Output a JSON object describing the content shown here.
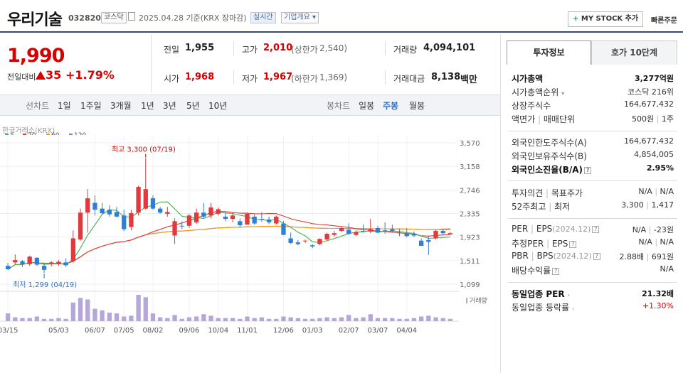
{
  "header": {
    "name": "우리기술",
    "code": "032820",
    "market": "코스닥",
    "date_text": "2025.04.28  기준(KRX 장마감)",
    "realtime": "실시간",
    "overview": "기업개요 ▾",
    "mystock": "MY STOCK 추가",
    "mystock_plus": "+",
    "quick_order": "빠른주문"
  },
  "price": {
    "current": "1,990",
    "change_label": "전일대비",
    "change": "35",
    "change_rate": "+1.79%",
    "up_color": "#d60000"
  },
  "quote": {
    "prev_label": "전일",
    "prev": "1,955",
    "high_label": "고가",
    "high": "2,010",
    "upper_label": "(상한가",
    "upper": "2,540)",
    "volume_label": "거래량",
    "volume": "4,094,101",
    "open_label": "시가",
    "open": "1,968",
    "low_label": "저가",
    "low": "1,967",
    "lower_label": "(하한가",
    "lower": "1,369)",
    "amount_label": "거래대금",
    "amount": "8,138",
    "amount_unit": "백만"
  },
  "period_bar": {
    "line_label": "선차트",
    "line_periods": [
      "1일",
      "1주일",
      "3개월",
      "1년",
      "3년",
      "5년",
      "10년"
    ],
    "candle_label": "봉차트",
    "candle_periods": [
      "일봉",
      "주봉",
      "월봉"
    ],
    "selected": "주봉"
  },
  "chart": {
    "source": "한국거래소(KRX)",
    "ma": [
      {
        "label": "5",
        "color": "#4caf50"
      },
      {
        "label": "20",
        "color": "#e53935"
      },
      {
        "label": "60",
        "color": "#ff9800"
      },
      {
        "label": "120",
        "color": "#9c6fd6"
      }
    ],
    "high_note": "최고 3,300 (07/19)",
    "low_note": "최저 1,299 (04/19)",
    "volume_label": "거래량"
  },
  "chart_data": {
    "type": "candlestick",
    "yticks": [
      3570,
      3158,
      2746,
      2335,
      1923,
      1511,
      1099
    ],
    "ylim": [
      1099,
      3570
    ],
    "xtick_labels": [
      "03/15",
      "05/03",
      "06/07",
      "07/05",
      "08/02",
      "09/06",
      "10/04",
      "11/01",
      "12/06",
      "01/03",
      "02/07",
      "03/07",
      "04/04"
    ],
    "xtick_index": [
      0,
      7,
      12,
      16,
      20,
      25,
      29,
      33,
      38,
      42,
      47,
      51,
      55
    ],
    "candles": [
      [
        1420,
        1470,
        1350,
        1360
      ],
      [
        1480,
        1620,
        1440,
        1520
      ],
      [
        1500,
        1520,
        1400,
        1450
      ],
      [
        1450,
        1600,
        1420,
        1580
      ],
      [
        1560,
        1570,
        1420,
        1440
      ],
      [
        1420,
        1450,
        1299,
        1350
      ],
      [
        1460,
        1500,
        1410,
        1480
      ],
      [
        1450,
        1520,
        1420,
        1490
      ],
      [
        1480,
        1550,
        1400,
        1430
      ],
      [
        1500,
        2040,
        1480,
        1900
      ],
      [
        1880,
        2420,
        1860,
        2350
      ],
      [
        2350,
        2760,
        2000,
        2600
      ],
      [
        2520,
        2650,
        2300,
        2400
      ],
      [
        2420,
        2520,
        2320,
        2340
      ],
      [
        2400,
        2480,
        2280,
        2320
      ],
      [
        2360,
        2450,
        2270,
        2280
      ],
      [
        2300,
        2400,
        2030,
        2060
      ],
      [
        2100,
        2400,
        2040,
        2340
      ],
      [
        2350,
        2820,
        2300,
        2800
      ],
      [
        2420,
        3300,
        2400,
        2760
      ],
      [
        2600,
        2650,
        2400,
        2420
      ],
      [
        2420,
        2450,
        2330,
        2350
      ],
      [
        2330,
        2450,
        2280,
        2360
      ],
      [
        1950,
        2250,
        1800,
        2200
      ],
      [
        2120,
        2200,
        2060,
        2110
      ],
      [
        2120,
        2330,
        2080,
        2300
      ],
      [
        2180,
        2420,
        2150,
        2350
      ],
      [
        2350,
        2520,
        2250,
        2280
      ],
      [
        2300,
        2520,
        2250,
        2440
      ],
      [
        2330,
        2440,
        2300,
        2410
      ],
      [
        2280,
        2350,
        2200,
        2240
      ],
      [
        2240,
        2350,
        2180,
        2300
      ],
      [
        2200,
        2250,
        2100,
        2130
      ],
      [
        2140,
        2350,
        2140,
        2330
      ],
      [
        2280,
        2320,
        2140,
        2160
      ],
      [
        2240,
        2360,
        2190,
        2230
      ],
      [
        2230,
        2280,
        2150,
        2180
      ],
      [
        2160,
        2300,
        2140,
        2280
      ],
      [
        2160,
        2200,
        1960,
        1960
      ],
      [
        1900,
        2000,
        1800,
        1820
      ],
      [
        1830,
        1870,
        1780,
        1800
      ],
      [
        1850,
        1880,
        1820,
        1860
      ],
      [
        1780,
        1800,
        1730,
        1760
      ],
      [
        1800,
        1900,
        1780,
        1890
      ],
      [
        1880,
        2000,
        1860,
        1980
      ],
      [
        1960,
        2030,
        1930,
        1990
      ],
      [
        2030,
        2100,
        2010,
        2080
      ],
      [
        2050,
        2160,
        1960,
        1980
      ],
      [
        1960,
        2040,
        1940,
        2010
      ],
      [
        2030,
        2140,
        2000,
        2020
      ],
      [
        2020,
        2240,
        1990,
        2060
      ],
      [
        2080,
        2120,
        1990,
        2000
      ],
      [
        2040,
        2180,
        1980,
        2020
      ],
      [
        2060,
        2140,
        2000,
        2030
      ],
      [
        1990,
        2060,
        1940,
        2000
      ],
      [
        1990,
        2080,
        1920,
        1940
      ],
      [
        1980,
        2020,
        1920,
        1950
      ],
      [
        1860,
        1900,
        1770,
        1770
      ],
      [
        1870,
        1950,
        1610,
        1840
      ],
      [
        1900,
        2050,
        1880,
        2030
      ],
      [
        2030,
        2070,
        1950,
        1990
      ],
      [
        1968,
        2010,
        1967,
        1990
      ]
    ],
    "volumes": [
      1.0,
      0.5,
      0.4,
      0.4,
      0.6,
      0.3,
      0.3,
      0.4,
      0.3,
      2.4,
      3.0,
      2.8,
      1.6,
      1.4,
      1.1,
      1.0,
      0.6,
      0.7,
      3.4,
      3.1,
      1.0,
      0.5,
      0.4,
      0.8,
      0.3,
      0.5,
      0.6,
      0.9,
      0.7,
      0.4,
      0.4,
      0.4,
      0.3,
      0.6,
      0.4,
      0.5,
      0.3,
      0.3,
      0.6,
      0.5,
      0.4,
      0.3,
      0.3,
      0.4,
      0.5,
      0.4,
      0.5,
      0.8,
      0.4,
      0.5,
      0.9,
      0.4,
      0.4,
      0.4,
      0.3,
      0.3,
      0.4,
      0.6,
      0.7,
      0.5,
      0.4,
      0.3
    ]
  },
  "right_panel": {
    "tabs": [
      "투자정보",
      "호가 10단계"
    ],
    "rows": {
      "market_cap_label": "시가총액",
      "market_cap": "3,277억원",
      "rank_label": "시가총액순위",
      "rank": "코스닥 216위",
      "shares_label": "상장주식수",
      "shares": "164,677,432",
      "par_label": "액면가",
      "unit_label": "매매단위",
      "par": "500원",
      "unit": "1주",
      "foreign_limit_label": "외국인한도주식수(A)",
      "foreign_limit": "164,677,432",
      "foreign_hold_label": "외국인보유주식수(B)",
      "foreign_hold": "4,854,005",
      "foreign_ratio_label": "외국인소진율(B/A)",
      "foreign_ratio": "2.95%",
      "opinion_label": "투자의견",
      "target_label": "목표주가",
      "opinion": "N/A",
      "target": "N/A",
      "w52_high_label": "52주최고",
      "w52_low_label": "최저",
      "w52_high": "3,300",
      "w52_low": "1,417",
      "per_label": "PER",
      "eps_label": "EPS",
      "eps_year": "(2024.12)",
      "per": "N/A",
      "eps": "-23원",
      "est_per_label": "추정PER",
      "est_eps_label": "EPS",
      "est_per": "N/A",
      "est_eps": "N/A",
      "pbr_label": "PBR",
      "bps_label": "BPS",
      "bps_year": "(2024.12)",
      "pbr": "2.88배",
      "bps": "691원",
      "dividend_label": "배당수익률",
      "dividend": "N/A",
      "industry_per_label": "동일업종 PER",
      "industry_per": "21.32배",
      "industry_rate_label": "동일업종 등락률",
      "industry_rate": "+1.30%"
    }
  }
}
